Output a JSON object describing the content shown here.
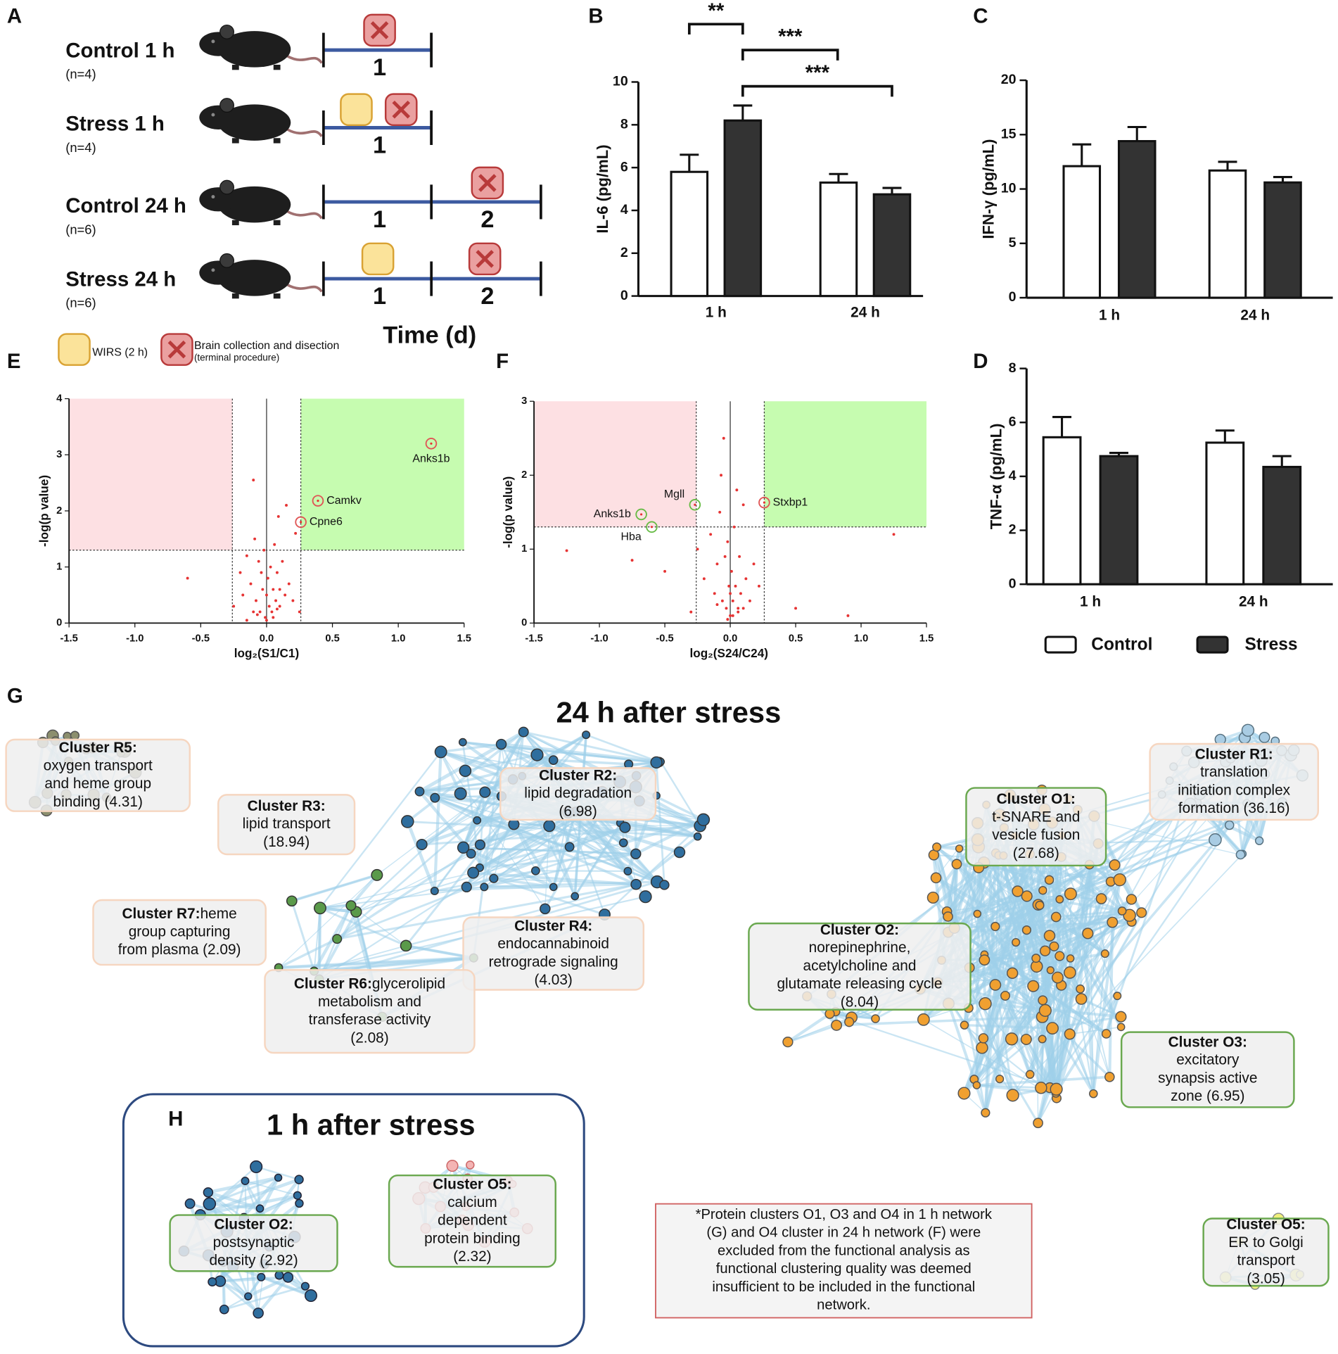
{
  "panel_labels": [
    "A",
    "B",
    "C",
    "D",
    "E",
    "F",
    "G",
    "H"
  ],
  "panel_a": {
    "groups": [
      {
        "label": "Control 1 h",
        "n": "(n=4)",
        "days": [
          "1"
        ]
      },
      {
        "label": "Stress 1 h",
        "n": "(n=4)",
        "days": [
          "1"
        ]
      },
      {
        "label": "Control 24 h",
        "n": "(n=6)",
        "days": [
          "1",
          "2"
        ]
      },
      {
        "label": "Stress 24 h",
        "n": "(n=6)",
        "days": [
          "1",
          "2"
        ]
      }
    ],
    "xlabel": "Time (d)",
    "legend": {
      "wirs": "WIRS (2 h)",
      "collection": "Brain collection and disection",
      "collection_note": "(terminal procedure)"
    }
  },
  "chart_data": [
    {
      "type": "bar",
      "ylabel": "IL-6 (pg/mL)",
      "categories": [
        "1 h",
        "24 h"
      ],
      "series": [
        {
          "color": "#ffffff",
          "values": [
            5.8,
            5.3
          ],
          "errors": [
            0.8,
            0.4
          ]
        },
        {
          "color": "#333333",
          "values": [
            8.2,
            4.75
          ],
          "errors": [
            0.7,
            0.3
          ]
        }
      ],
      "ylim": [
        0,
        10
      ],
      "yticks": [
        0,
        2,
        4,
        6,
        8,
        10
      ],
      "annotations": [
        "**",
        "***",
        "***"
      ]
    },
    {
      "type": "bar",
      "ylabel": "IFN-γ (pg/mL)",
      "categories": [
        "1 h",
        "24 h"
      ],
      "series": [
        {
          "color": "#ffffff",
          "values": [
            12.1,
            11.7
          ],
          "errors": [
            2.0,
            0.8
          ]
        },
        {
          "color": "#333333",
          "values": [
            14.4,
            10.6
          ],
          "errors": [
            1.3,
            0.5
          ]
        }
      ],
      "ylim": [
        0,
        20
      ],
      "yticks": [
        0,
        5,
        10,
        15,
        20
      ]
    },
    {
      "type": "bar",
      "ylabel": "TNF-α (pg/mL)",
      "categories": [
        "1 h",
        "24 h"
      ],
      "series": [
        {
          "name": "Control",
          "color": "#ffffff",
          "values": [
            5.45,
            5.25
          ],
          "errors": [
            0.75,
            0.45
          ]
        },
        {
          "name": "Stress",
          "color": "#333333",
          "values": [
            4.75,
            4.35
          ],
          "errors": [
            0.12,
            0.4
          ]
        }
      ],
      "ylim": [
        0,
        8
      ],
      "yticks": [
        0,
        2,
        4,
        6,
        8
      ]
    },
    {
      "type": "scatter",
      "xlabel": "log₂(S1/C1)",
      "ylabel": "-log(p value)",
      "color": "#e63333",
      "xlim": [
        -1.5,
        1.5
      ],
      "ylim": [
        0,
        4
      ],
      "xticks": [
        -1.5,
        {
          "value": -1,
          "label": "-1.0"
        },
        -0.5,
        {
          "value": 0,
          "label": "0.0"
        },
        0.5,
        {
          "value": 1,
          "label": "1.0"
        },
        1.5
      ],
      "yticks": [
        0,
        1,
        2,
        3,
        4
      ],
      "xlines": [
        -0.26,
        0.26
      ],
      "hline": 1.3,
      "x": [
        -0.6,
        -0.25,
        -0.2,
        -0.18,
        -0.15,
        -0.12,
        -0.1,
        -0.09,
        -0.08,
        -0.06,
        -0.05,
        -0.04,
        -0.03,
        -0.02,
        -0.01,
        0,
        0.01,
        0.02,
        0.03,
        0.04,
        0.05,
        0.06,
        0.07,
        0.08,
        0.09,
        0.1,
        0.12,
        0.14,
        0.15,
        0.17,
        0.2,
        0.22,
        0.25,
        -0.1,
        -0.07,
        0.05,
        0.1,
        -0.15,
        0.08,
        0
      ],
      "values": [
        0.8,
        0.3,
        0.9,
        0.5,
        1.2,
        0.7,
        2.55,
        1.5,
        0.4,
        1.1,
        0.2,
        0.9,
        0.6,
        1.3,
        0.1,
        0.5,
        0.8,
        0.3,
        1.0,
        0.2,
        0.6,
        1.4,
        0.4,
        0.9,
        1.9,
        0.3,
        1.1,
        0.5,
        2.1,
        0.7,
        0.4,
        1.6,
        0.2,
        0.2,
        0.15,
        0.1,
        0.6,
        0.05,
        0.25,
        0.05
      ],
      "highlights": [
        {
          "label": "Anks1b",
          "x": 1.25,
          "value": 3.2,
          "color": "#e05555"
        },
        {
          "label": "Camkv",
          "x": 0.39,
          "value": 2.18,
          "color": "#e05555"
        },
        {
          "label": "Cpne6",
          "x": 0.26,
          "value": 1.8,
          "color": "#e05555"
        }
      ]
    },
    {
      "type": "scatter",
      "xlabel": "log₂(S24/C24)",
      "ylabel": "-log(p value)",
      "color": "#e63333",
      "xlim": [
        -1.5,
        1.5
      ],
      "ylim": [
        0,
        3
      ],
      "xticks": [
        -1.5,
        {
          "value": -1,
          "label": "-1.0"
        },
        -0.5,
        {
          "value": 0,
          "label": "0.0"
        },
        0.5,
        {
          "value": 1,
          "label": "1.0"
        },
        1.5
      ],
      "yticks": [
        0,
        1,
        2,
        3
      ],
      "xlines": [
        -0.26,
        0.26
      ],
      "hline": 1.3,
      "x": [
        -1.25,
        -0.75,
        -0.5,
        -0.25,
        -0.2,
        -0.15,
        -0.12,
        -0.1,
        -0.08,
        -0.06,
        -0.05,
        -0.04,
        -0.03,
        -0.02,
        -0.01,
        0,
        0.01,
        0.02,
        0.03,
        0.04,
        0.05,
        0.06,
        0.07,
        0.08,
        0.1,
        0.12,
        0.15,
        0.18,
        0.22,
        -0.3,
        0.5,
        1.25,
        0.9,
        -0.07,
        0.06,
        -0.02,
        0.02,
        -0.1,
        0.1,
        0
      ],
      "values": [
        0.98,
        0.85,
        0.7,
        1.0,
        0.6,
        1.2,
        0.4,
        0.8,
        1.5,
        0.3,
        2.5,
        0.9,
        0.2,
        1.1,
        0.5,
        0.1,
        0.7,
        0.3,
        1.3,
        0.5,
        1.8,
        0.2,
        0.9,
        0.4,
        1.6,
        0.6,
        0.3,
        0.8,
        0.5,
        0.15,
        0.2,
        1.2,
        0.1,
        2.0,
        0.15,
        0.05,
        0.1,
        0.25,
        0.2,
        0.4
      ],
      "highlights": [
        {
          "label": "Anks1b",
          "x": -0.68,
          "value": 1.47,
          "color": "#66bb44"
        },
        {
          "label": "Hba",
          "x": -0.6,
          "value": 1.3,
          "color": "#66bb44"
        },
        {
          "label": "Mgll",
          "x": -0.27,
          "value": 1.6,
          "color": "#66bb44"
        },
        {
          "label": "Stxbp1",
          "x": 0.26,
          "value": 1.63,
          "color": "#e05555"
        }
      ]
    }
  ],
  "network_24h": {
    "title": "24 h after stress",
    "clusters": [
      {
        "name": "Cluster R5:",
        "lines": [
          "oxygen transport",
          "and heme group",
          "binding (4.31)"
        ]
      },
      {
        "name": "Cluster R3:",
        "lines": [
          "lipid transport",
          "(18.94)"
        ]
      },
      {
        "name": "Cluster R2:",
        "lines": [
          "lipid degradation",
          "(6.98)"
        ]
      },
      {
        "name": "Cluster R7:",
        "lines": [
          "heme",
          "group capturing",
          "from plasma (2.09)"
        ]
      },
      {
        "name": "Cluster R4:",
        "lines": [
          "endocannabinoid",
          "retrograde signaling",
          "(4.03)"
        ]
      },
      {
        "name": "Cluster R6:",
        "lines": [
          "glycerolipid",
          "metabolism and",
          "transferase activity",
          "(2.08)"
        ]
      },
      {
        "name": "Cluster O1:",
        "lines": [
          "t-SNARE and",
          "vesicle fusion",
          "(27.68)"
        ]
      },
      {
        "name": "Cluster R1:",
        "lines": [
          "translation",
          "initiation complex",
          "formation (36.16)"
        ]
      },
      {
        "name": "Cluster O2:",
        "lines": [
          "norepinephrine,",
          "acetylcholine and",
          "glutamate releasing cycle",
          "(8.04)"
        ]
      },
      {
        "name": "Cluster O3:",
        "lines": [
          "excitatory",
          "synapsis active",
          "zone (6.95)"
        ]
      },
      {
        "name": "Cluster O5:",
        "lines": [
          "ER to Golgi",
          "transport",
          "(3.05)"
        ]
      }
    ]
  },
  "network_1h": {
    "title": "1 h after stress",
    "clusters": [
      {
        "name": "Cluster O2:",
        "lines": [
          "postsynaptic",
          "density (2.92)"
        ]
      },
      {
        "name": "Cluster O5:",
        "lines": [
          "calcium",
          "dependent",
          "protein binding",
          "(2.32)"
        ]
      }
    ]
  },
  "note": {
    "lines": [
      "*Protein clusters O1, O3 and O4 in 1 h network",
      "(G) and O4 cluster in 24 h network (F) were",
      "excluded from the functional analysis as",
      "functional clustering quality was deemed",
      "insufficient to be included in the functional",
      "network."
    ]
  }
}
